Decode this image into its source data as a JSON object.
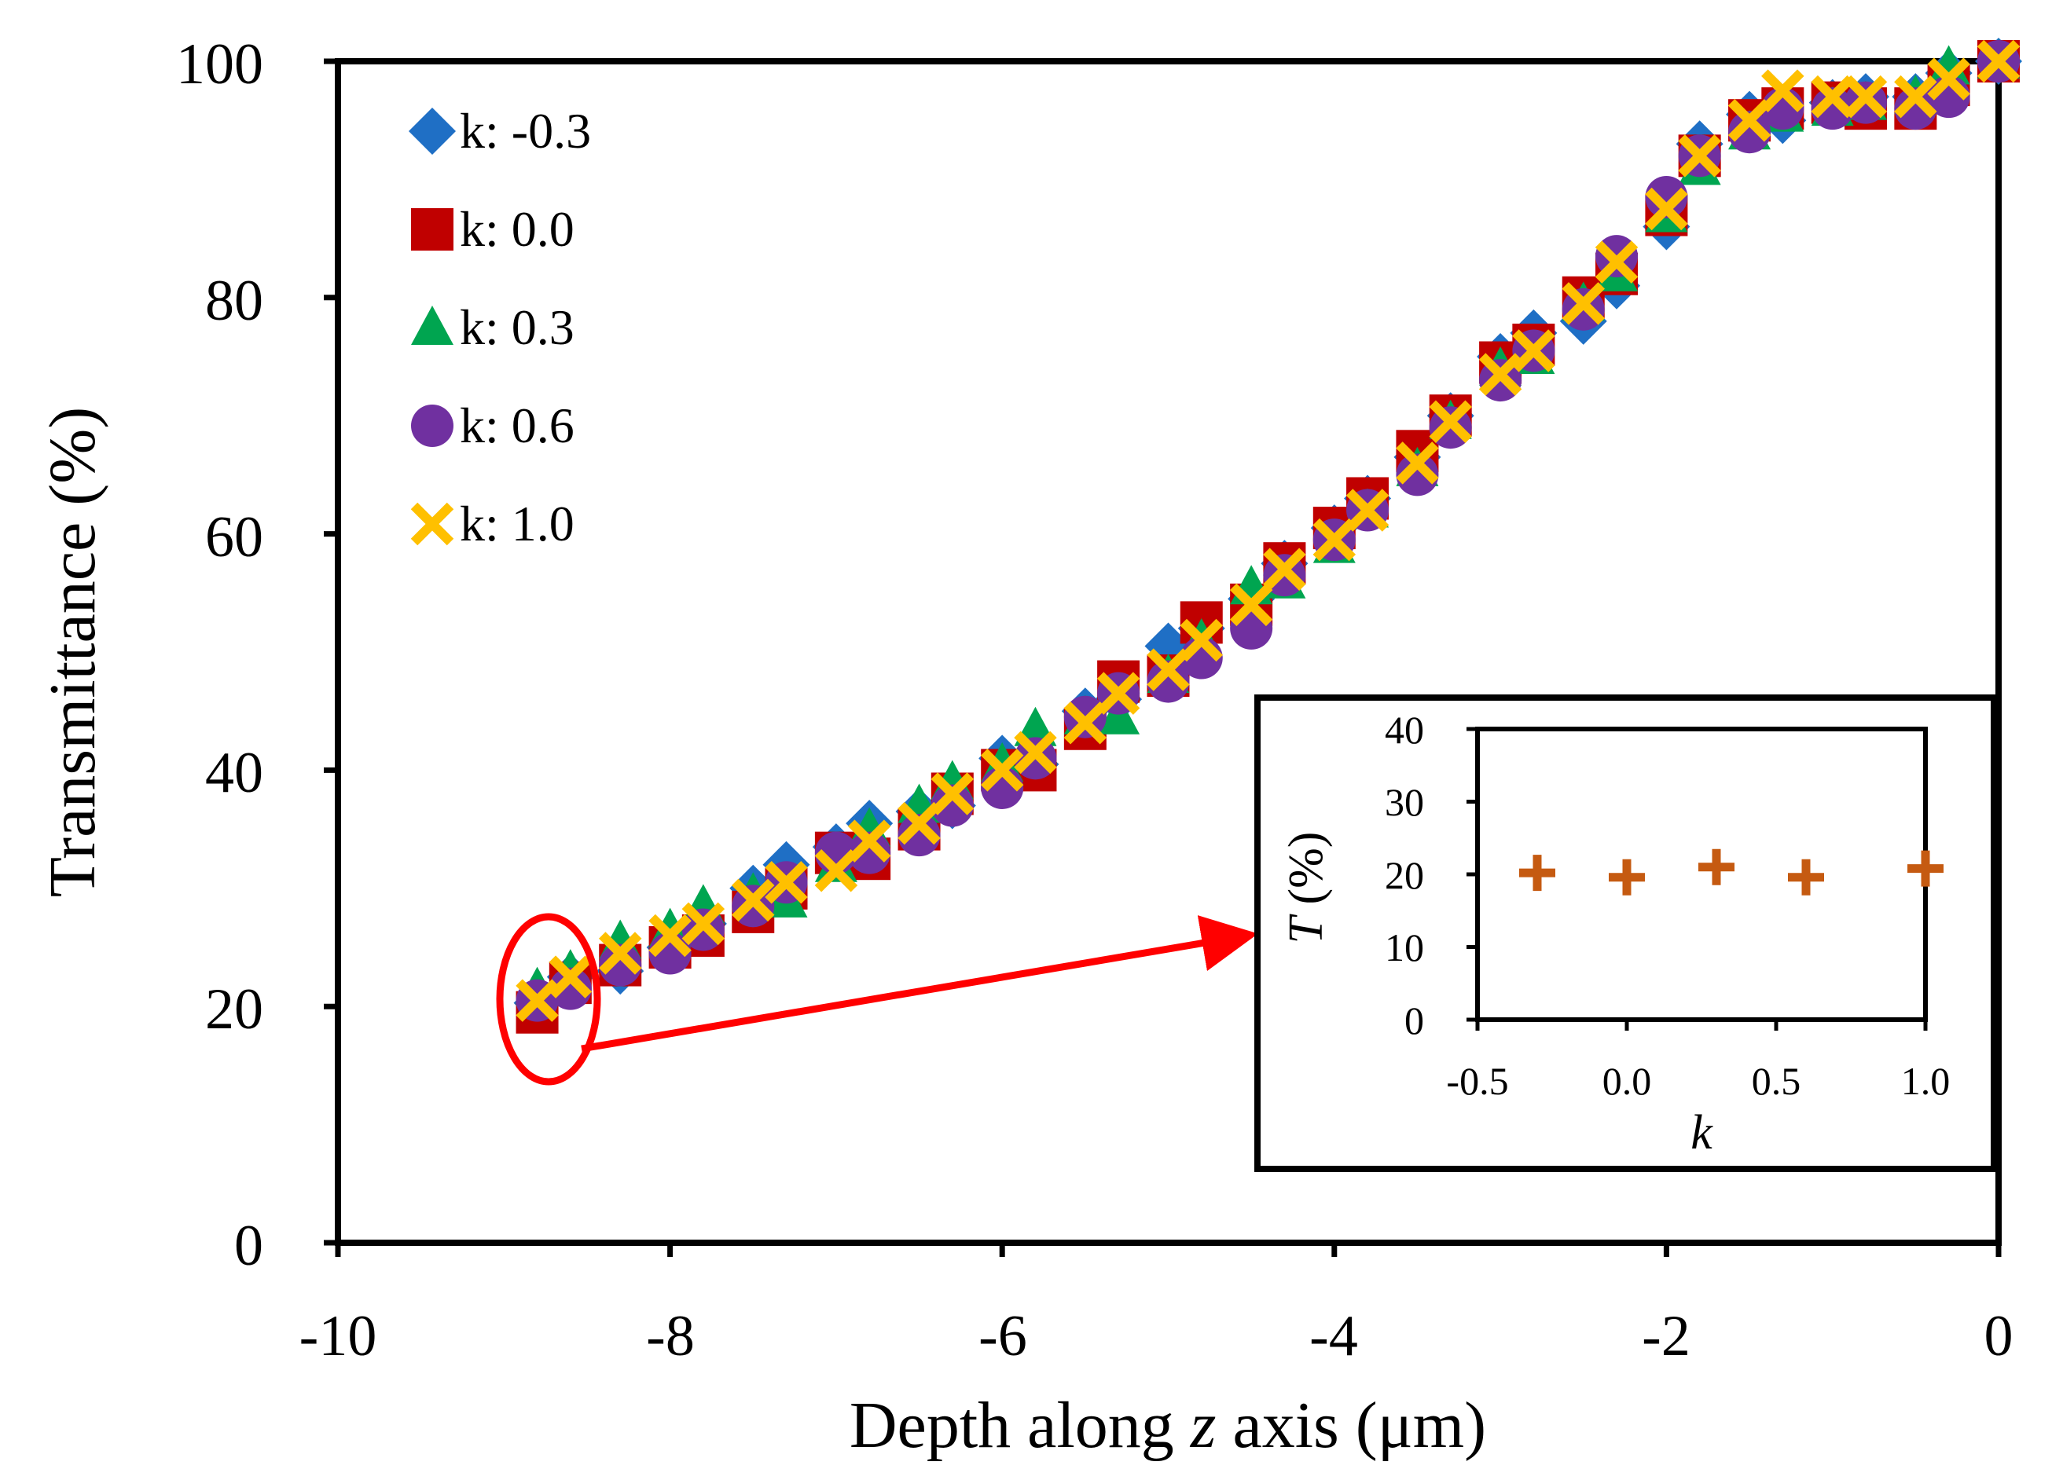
{
  "chart_data": {
    "main": {
      "type": "scatter",
      "xlabel_parts": [
        "Depth along ",
        "z",
        " axis (μm)"
      ],
      "ylabel": "Transmittance (%)",
      "xlim": [
        -10,
        0
      ],
      "ylim": [
        0,
        100
      ],
      "xticks": [
        "-10",
        "-8",
        "-6",
        "-4",
        "-2",
        "0"
      ],
      "yticks": [
        "0",
        "20",
        "40",
        "60",
        "80",
        "100"
      ],
      "legend_position": "top-left",
      "x": [
        -8.8,
        -8.6,
        -8.3,
        -8.0,
        -7.8,
        -7.5,
        -7.3,
        -7.0,
        -6.8,
        -6.5,
        -6.3,
        -6.0,
        -5.8,
        -5.5,
        -5.3,
        -5.0,
        -4.8,
        -4.5,
        -4.3,
        -4.0,
        -3.8,
        -3.5,
        -3.3,
        -3.0,
        -2.8,
        -2.5,
        -2.3,
        -2.0,
        -1.8,
        -1.5,
        -1.3,
        -1.0,
        -0.8,
        -0.5,
        -0.3,
        0.0
      ],
      "series": [
        {
          "name": "k: -0.3",
          "marker": "diamond",
          "color": "#1f6fc5",
          "values": [
            20.3,
            22.5,
            23.0,
            25.0,
            27.0,
            30.0,
            32.0,
            33.5,
            35.5,
            36.5,
            37.0,
            41.0,
            40.5,
            45.0,
            46.0,
            50.5,
            52.0,
            54.5,
            57.5,
            60.5,
            63.0,
            66.5,
            70.0,
            75.0,
            77.0,
            78.0,
            81.0,
            86.0,
            93.0,
            95.5,
            95.0,
            96.5,
            97.0,
            97.0,
            99.0,
            100.0
          ]
        },
        {
          "name": "k: 0.0",
          "marker": "square",
          "color": "#c00000",
          "values": [
            19.5,
            22.0,
            23.5,
            25.0,
            26.0,
            28.0,
            30.0,
            33.0,
            32.5,
            35.0,
            38.0,
            40.0,
            40.0,
            43.5,
            47.5,
            48.0,
            52.5,
            54.0,
            57.5,
            60.5,
            63.0,
            67.0,
            70.0,
            74.5,
            76.0,
            80.0,
            82.0,
            87.0,
            92.0,
            95.0,
            96.0,
            96.5,
            96.0,
            96.0,
            98.0,
            100.0
          ]
        },
        {
          "name": "k: 0.3",
          "marker": "triangle",
          "color": "#00a550",
          "values": [
            21.5,
            23.0,
            25.5,
            26.5,
            28.5,
            29.5,
            29.0,
            32.0,
            35.0,
            37.0,
            39.0,
            40.5,
            43.5,
            44.5,
            44.5,
            48.0,
            51.0,
            55.5,
            56.0,
            59.0,
            62.0,
            65.5,
            69.5,
            74.0,
            75.0,
            79.5,
            82.0,
            87.0,
            91.0,
            94.0,
            95.5,
            96.0,
            96.5,
            97.0,
            99.5,
            100.0
          ]
        },
        {
          "name": "k: 0.6",
          "marker": "circle",
          "color": "#7030a0",
          "values": [
            20.5,
            21.5,
            23.5,
            24.5,
            26.5,
            28.5,
            30.5,
            33.0,
            33.0,
            34.5,
            37.0,
            38.5,
            41.0,
            44.5,
            46.5,
            47.5,
            49.5,
            52.0,
            56.5,
            59.5,
            62.0,
            65.0,
            69.0,
            73.0,
            75.5,
            79.0,
            83.5,
            88.5,
            92.0,
            94.0,
            96.0,
            96.0,
            96.5,
            96.0,
            97.0,
            100.0
          ]
        },
        {
          "name": "k: 1.0",
          "marker": "x",
          "color": "#ffc000",
          "values": [
            20.5,
            22.5,
            24.5,
            26.0,
            27.0,
            29.0,
            30.5,
            31.5,
            34.0,
            35.5,
            38.0,
            40.0,
            41.5,
            44.0,
            46.5,
            48.5,
            51.0,
            54.0,
            57.0,
            59.5,
            62.0,
            66.0,
            69.5,
            73.5,
            75.5,
            79.5,
            83.0,
            87.5,
            92.0,
            95.0,
            97.5,
            97.0,
            97.0,
            97.0,
            98.5,
            100.0
          ]
        }
      ],
      "annotation": {
        "type": "ellipse-with-arrow",
        "color": "#ff0000",
        "target": "inset",
        "around_x": -8.8,
        "around_y": 20.5
      }
    },
    "inset": {
      "type": "scatter",
      "xlabel": "k",
      "ylabel_parts": [
        "T",
        " (%)"
      ],
      "xlim": [
        -0.5,
        1.0
      ],
      "ylim": [
        0,
        40
      ],
      "xticks": [
        "-0.5",
        "0.0",
        "0.5",
        "1.0"
      ],
      "yticks": [
        "0",
        "10",
        "20",
        "30",
        "40"
      ],
      "marker": "plus",
      "color": "#c55a11",
      "x": [
        -0.3,
        0.0,
        0.3,
        0.6,
        1.0
      ],
      "values": [
        20.2,
        19.6,
        21.0,
        19.6,
        20.8
      ]
    }
  }
}
